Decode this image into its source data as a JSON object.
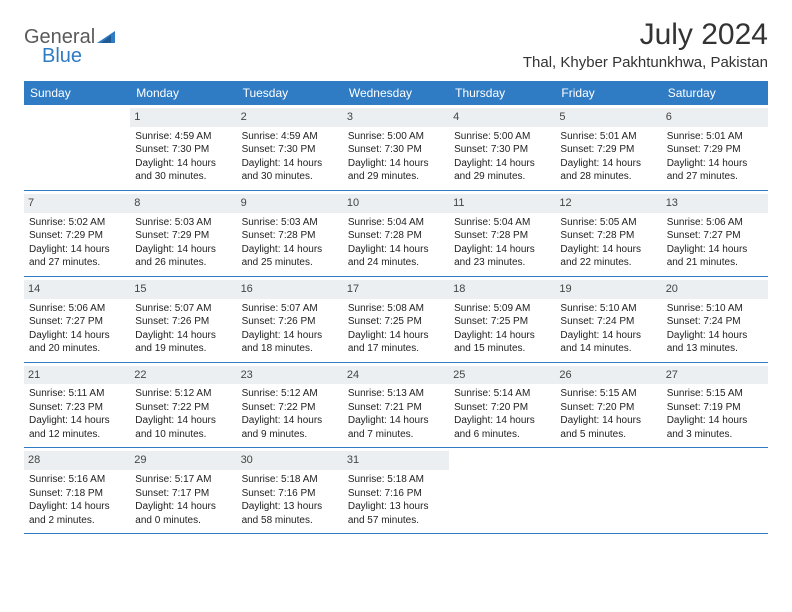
{
  "logo": {
    "text1": "General",
    "text2": "Blue"
  },
  "title": "July 2024",
  "location": "Thal, Khyber Pakhtunkhwa, Pakistan",
  "colors": {
    "header_bg": "#2f7bc4",
    "header_text": "#ffffff",
    "daynum_bg": "#eceff1",
    "body_text": "#222222",
    "logo_gray": "#5a5a5a",
    "logo_blue": "#2f7bc4"
  },
  "weekdays": [
    "Sunday",
    "Monday",
    "Tuesday",
    "Wednesday",
    "Thursday",
    "Friday",
    "Saturday"
  ],
  "weeks": [
    [
      {
        "n": "",
        "sr": "",
        "ss": "",
        "dl1": "",
        "dl2": ""
      },
      {
        "n": "1",
        "sr": "Sunrise: 4:59 AM",
        "ss": "Sunset: 7:30 PM",
        "dl1": "Daylight: 14 hours",
        "dl2": "and 30 minutes."
      },
      {
        "n": "2",
        "sr": "Sunrise: 4:59 AM",
        "ss": "Sunset: 7:30 PM",
        "dl1": "Daylight: 14 hours",
        "dl2": "and 30 minutes."
      },
      {
        "n": "3",
        "sr": "Sunrise: 5:00 AM",
        "ss": "Sunset: 7:30 PM",
        "dl1": "Daylight: 14 hours",
        "dl2": "and 29 minutes."
      },
      {
        "n": "4",
        "sr": "Sunrise: 5:00 AM",
        "ss": "Sunset: 7:30 PM",
        "dl1": "Daylight: 14 hours",
        "dl2": "and 29 minutes."
      },
      {
        "n": "5",
        "sr": "Sunrise: 5:01 AM",
        "ss": "Sunset: 7:29 PM",
        "dl1": "Daylight: 14 hours",
        "dl2": "and 28 minutes."
      },
      {
        "n": "6",
        "sr": "Sunrise: 5:01 AM",
        "ss": "Sunset: 7:29 PM",
        "dl1": "Daylight: 14 hours",
        "dl2": "and 27 minutes."
      }
    ],
    [
      {
        "n": "7",
        "sr": "Sunrise: 5:02 AM",
        "ss": "Sunset: 7:29 PM",
        "dl1": "Daylight: 14 hours",
        "dl2": "and 27 minutes."
      },
      {
        "n": "8",
        "sr": "Sunrise: 5:03 AM",
        "ss": "Sunset: 7:29 PM",
        "dl1": "Daylight: 14 hours",
        "dl2": "and 26 minutes."
      },
      {
        "n": "9",
        "sr": "Sunrise: 5:03 AM",
        "ss": "Sunset: 7:28 PM",
        "dl1": "Daylight: 14 hours",
        "dl2": "and 25 minutes."
      },
      {
        "n": "10",
        "sr": "Sunrise: 5:04 AM",
        "ss": "Sunset: 7:28 PM",
        "dl1": "Daylight: 14 hours",
        "dl2": "and 24 minutes."
      },
      {
        "n": "11",
        "sr": "Sunrise: 5:04 AM",
        "ss": "Sunset: 7:28 PM",
        "dl1": "Daylight: 14 hours",
        "dl2": "and 23 minutes."
      },
      {
        "n": "12",
        "sr": "Sunrise: 5:05 AM",
        "ss": "Sunset: 7:28 PM",
        "dl1": "Daylight: 14 hours",
        "dl2": "and 22 minutes."
      },
      {
        "n": "13",
        "sr": "Sunrise: 5:06 AM",
        "ss": "Sunset: 7:27 PM",
        "dl1": "Daylight: 14 hours",
        "dl2": "and 21 minutes."
      }
    ],
    [
      {
        "n": "14",
        "sr": "Sunrise: 5:06 AM",
        "ss": "Sunset: 7:27 PM",
        "dl1": "Daylight: 14 hours",
        "dl2": "and 20 minutes."
      },
      {
        "n": "15",
        "sr": "Sunrise: 5:07 AM",
        "ss": "Sunset: 7:26 PM",
        "dl1": "Daylight: 14 hours",
        "dl2": "and 19 minutes."
      },
      {
        "n": "16",
        "sr": "Sunrise: 5:07 AM",
        "ss": "Sunset: 7:26 PM",
        "dl1": "Daylight: 14 hours",
        "dl2": "and 18 minutes."
      },
      {
        "n": "17",
        "sr": "Sunrise: 5:08 AM",
        "ss": "Sunset: 7:25 PM",
        "dl1": "Daylight: 14 hours",
        "dl2": "and 17 minutes."
      },
      {
        "n": "18",
        "sr": "Sunrise: 5:09 AM",
        "ss": "Sunset: 7:25 PM",
        "dl1": "Daylight: 14 hours",
        "dl2": "and 15 minutes."
      },
      {
        "n": "19",
        "sr": "Sunrise: 5:10 AM",
        "ss": "Sunset: 7:24 PM",
        "dl1": "Daylight: 14 hours",
        "dl2": "and 14 minutes."
      },
      {
        "n": "20",
        "sr": "Sunrise: 5:10 AM",
        "ss": "Sunset: 7:24 PM",
        "dl1": "Daylight: 14 hours",
        "dl2": "and 13 minutes."
      }
    ],
    [
      {
        "n": "21",
        "sr": "Sunrise: 5:11 AM",
        "ss": "Sunset: 7:23 PM",
        "dl1": "Daylight: 14 hours",
        "dl2": "and 12 minutes."
      },
      {
        "n": "22",
        "sr": "Sunrise: 5:12 AM",
        "ss": "Sunset: 7:22 PM",
        "dl1": "Daylight: 14 hours",
        "dl2": "and 10 minutes."
      },
      {
        "n": "23",
        "sr": "Sunrise: 5:12 AM",
        "ss": "Sunset: 7:22 PM",
        "dl1": "Daylight: 14 hours",
        "dl2": "and 9 minutes."
      },
      {
        "n": "24",
        "sr": "Sunrise: 5:13 AM",
        "ss": "Sunset: 7:21 PM",
        "dl1": "Daylight: 14 hours",
        "dl2": "and 7 minutes."
      },
      {
        "n": "25",
        "sr": "Sunrise: 5:14 AM",
        "ss": "Sunset: 7:20 PM",
        "dl1": "Daylight: 14 hours",
        "dl2": "and 6 minutes."
      },
      {
        "n": "26",
        "sr": "Sunrise: 5:15 AM",
        "ss": "Sunset: 7:20 PM",
        "dl1": "Daylight: 14 hours",
        "dl2": "and 5 minutes."
      },
      {
        "n": "27",
        "sr": "Sunrise: 5:15 AM",
        "ss": "Sunset: 7:19 PM",
        "dl1": "Daylight: 14 hours",
        "dl2": "and 3 minutes."
      }
    ],
    [
      {
        "n": "28",
        "sr": "Sunrise: 5:16 AM",
        "ss": "Sunset: 7:18 PM",
        "dl1": "Daylight: 14 hours",
        "dl2": "and 2 minutes."
      },
      {
        "n": "29",
        "sr": "Sunrise: 5:17 AM",
        "ss": "Sunset: 7:17 PM",
        "dl1": "Daylight: 14 hours",
        "dl2": "and 0 minutes."
      },
      {
        "n": "30",
        "sr": "Sunrise: 5:18 AM",
        "ss": "Sunset: 7:16 PM",
        "dl1": "Daylight: 13 hours",
        "dl2": "and 58 minutes."
      },
      {
        "n": "31",
        "sr": "Sunrise: 5:18 AM",
        "ss": "Sunset: 7:16 PM",
        "dl1": "Daylight: 13 hours",
        "dl2": "and 57 minutes."
      },
      {
        "n": "",
        "sr": "",
        "ss": "",
        "dl1": "",
        "dl2": ""
      },
      {
        "n": "",
        "sr": "",
        "ss": "",
        "dl1": "",
        "dl2": ""
      },
      {
        "n": "",
        "sr": "",
        "ss": "",
        "dl1": "",
        "dl2": ""
      }
    ]
  ]
}
